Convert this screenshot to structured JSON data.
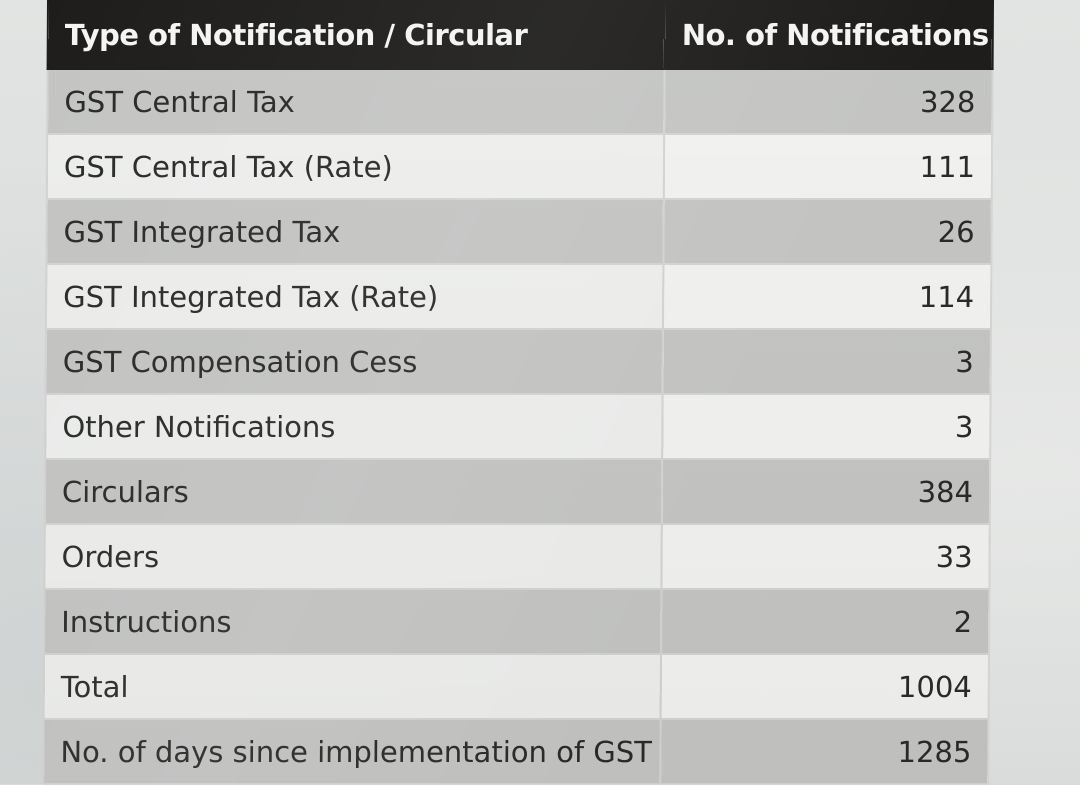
{
  "table": {
    "headers": {
      "type": "Type of Notification / Circular",
      "count": "No. of Notifications"
    },
    "rows": [
      {
        "type": "GST Central Tax",
        "count": "328",
        "shade": "shaded"
      },
      {
        "type": "GST Central Tax (Rate)",
        "count": "111",
        "shade": "plain"
      },
      {
        "type": "GST Integrated Tax",
        "count": "26",
        "shade": "shaded"
      },
      {
        "type": "GST Integrated Tax (Rate)",
        "count": "114",
        "shade": "plain"
      },
      {
        "type": "GST Compensation Cess",
        "count": "3",
        "shade": "shaded"
      },
      {
        "type": "Other Notifications",
        "count": "3",
        "shade": "plain"
      },
      {
        "type": "Circulars",
        "count": "384",
        "shade": "shaded"
      },
      {
        "type": "Orders",
        "count": "33",
        "shade": "plain"
      },
      {
        "type": "Instructions",
        "count": "2",
        "shade": "shaded"
      },
      {
        "type": "Total",
        "count": "1004",
        "shade": "plain"
      },
      {
        "type": "No. of days since implementation of GST",
        "count": "1285",
        "shade": "shaded"
      }
    ]
  },
  "colors": {
    "header_bg": "#1e1d1b",
    "header_text": "#f4f4f2",
    "row_shaded": "#c5c6c4",
    "row_plain": "#eeefed"
  }
}
